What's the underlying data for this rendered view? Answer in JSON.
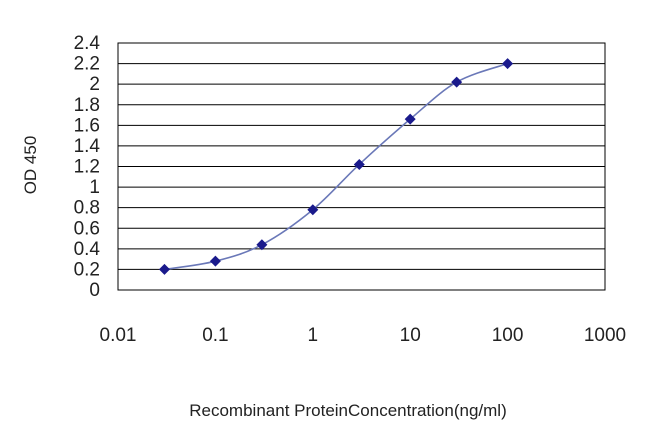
{
  "chart_data": {
    "type": "line",
    "xlabel": "Recombinant ProteinConcentration(ng/ml)",
    "ylabel": "OD 450",
    "x_scale": "log",
    "xlim": [
      0.01,
      1000
    ],
    "ylim": [
      0,
      2.4
    ],
    "x_ticks": [
      "0.01",
      "0.1",
      "1",
      "10",
      "100",
      "1000"
    ],
    "y_ticks": [
      "0",
      "0.2",
      "0.4",
      "0.6",
      "0.8",
      "1",
      "1.2",
      "1.4",
      "1.6",
      "1.8",
      "2",
      "2.2",
      "2.4"
    ],
    "grid": "horizontal",
    "series": [
      {
        "x": [
          0.03,
          0.1,
          0.3,
          1,
          3,
          10,
          30,
          100
        ],
        "y": [
          0.2,
          0.28,
          0.44,
          0.78,
          1.22,
          1.66,
          2.02,
          2.2
        ]
      }
    ],
    "colors": {
      "line": "#6a78b8",
      "marker": "#1a1a8c",
      "grid": "#000000",
      "frame": "#000000"
    }
  }
}
